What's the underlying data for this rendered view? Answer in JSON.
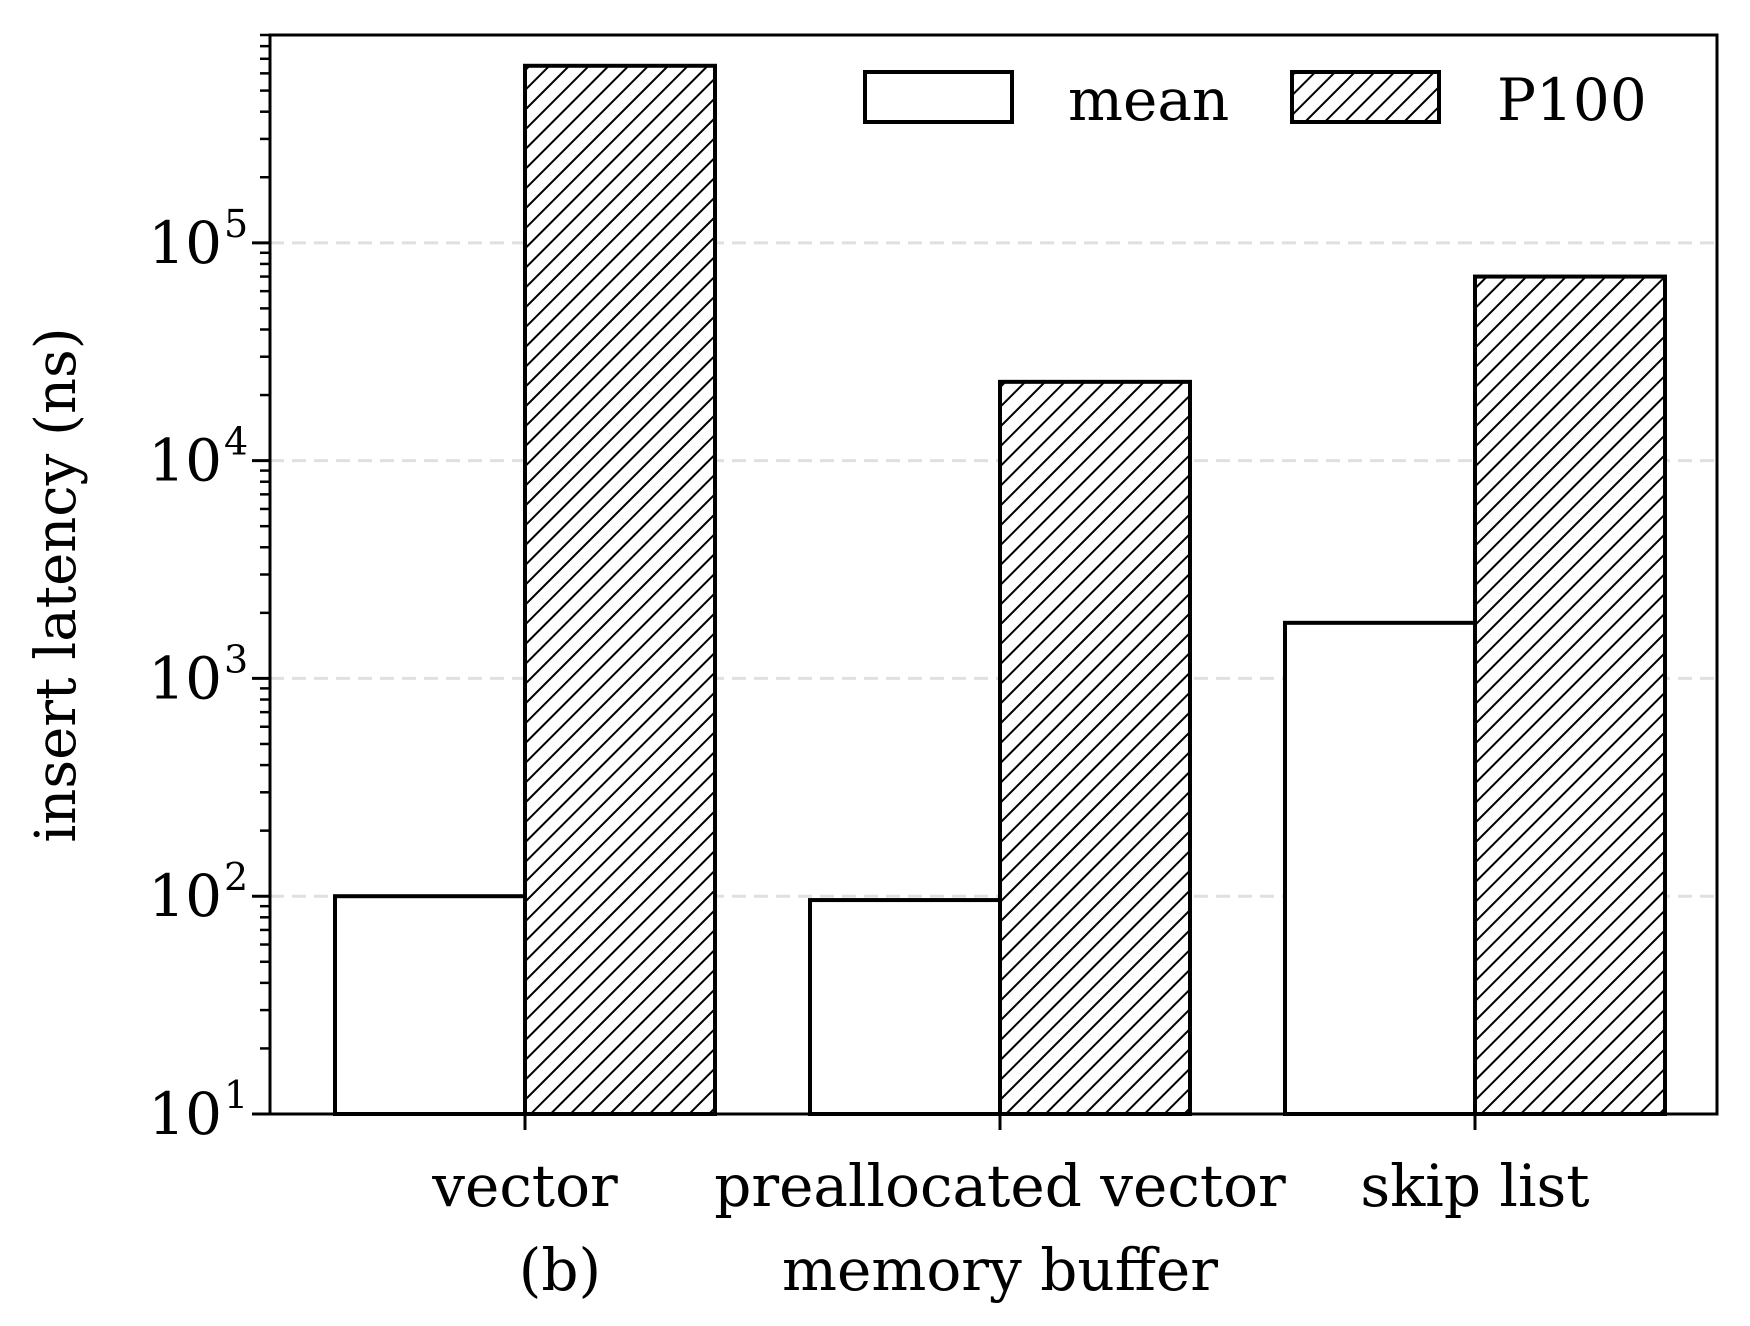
{
  "chart_data": {
    "type": "bar",
    "categories": [
      "vector",
      "preallocated vector",
      "skip list"
    ],
    "series": [
      {
        "name": "mean",
        "values": [
          100,
          96,
          1800
        ],
        "fill": "#ffffff",
        "hatch": false
      },
      {
        "name": "P100",
        "values": [
          650000,
          23000,
          70000
        ],
        "fill": "#ffffff",
        "hatch": true
      }
    ],
    "xlabel": "memory buffer",
    "ylabel": "insert latency (ns)",
    "ylim": [
      10,
      900000
    ],
    "yscale": "log",
    "yticks": [
      {
        "base": "10",
        "exp": "1",
        "value": 10
      },
      {
        "base": "10",
        "exp": "2",
        "value": 100
      },
      {
        "base": "10",
        "exp": "3",
        "value": 1000
      },
      {
        "base": "10",
        "exp": "4",
        "value": 10000
      },
      {
        "base": "10",
        "exp": "5",
        "value": 100000
      }
    ],
    "grid": "y-major dashed",
    "legend": "top-right",
    "annotation": "(b)",
    "colors": {
      "edge": "#000000",
      "grid": "#e0e0e0"
    }
  }
}
